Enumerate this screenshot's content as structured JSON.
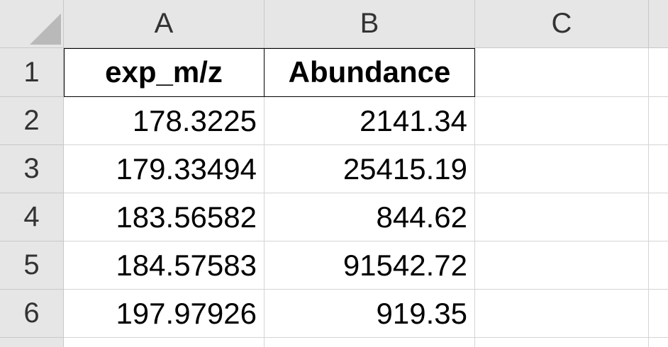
{
  "columns": [
    "A",
    "B",
    "C"
  ],
  "rows": [
    "1",
    "2",
    "3",
    "4",
    "5",
    "6"
  ],
  "header": {
    "A": "exp_m/z",
    "B": "Abundance"
  },
  "data": [
    {
      "A": "178.3225",
      "B": "2141.34"
    },
    {
      "A": "179.33494",
      "B": "25415.19"
    },
    {
      "A": "183.56582",
      "B": "844.62"
    },
    {
      "A": "184.57583",
      "B": "91542.72"
    },
    {
      "A": "197.97926",
      "B": "919.35"
    }
  ]
}
